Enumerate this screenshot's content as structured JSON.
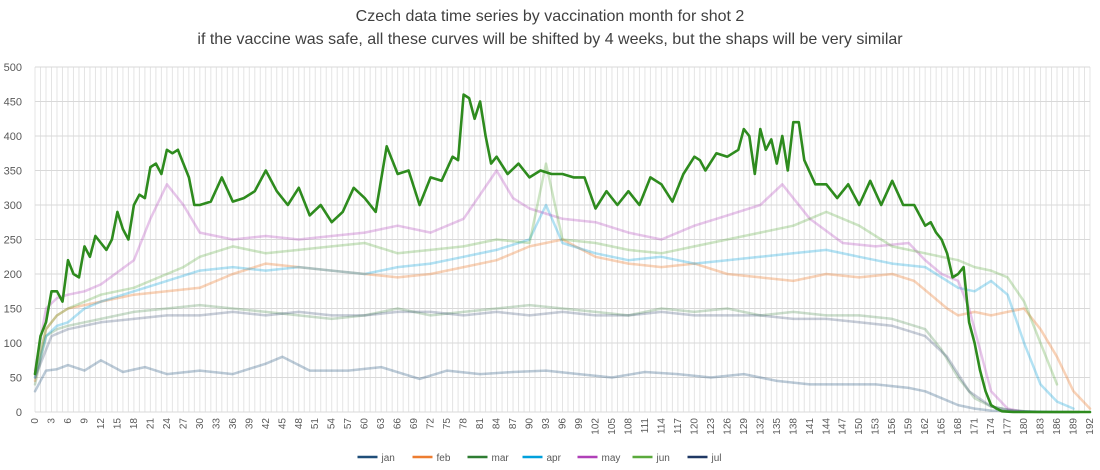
{
  "chart_data": {
    "type": "line",
    "title": "Czech data time series by vaccination month for shot 2",
    "subtitle": "if the vaccine was safe, all these curves will be shifted by 4 weeks, but the shaps will be very similar",
    "xlabel": "",
    "ylabel": "",
    "xlim": [
      0,
      192
    ],
    "ylim": [
      0,
      500
    ],
    "yticks": [
      0,
      50,
      100,
      150,
      200,
      250,
      300,
      350,
      400,
      450,
      500
    ],
    "xtick_step": 3,
    "grid": true,
    "legend_position": "bottom",
    "note": "Series are approximate readings from the figure (weekly values at shown x positions).",
    "series": [
      {
        "name": "jan",
        "color": "#1f4e79",
        "opacity": 0.3,
        "width": 2.5,
        "x": [
          0,
          2,
          4,
          6,
          9,
          12,
          16,
          20,
          24,
          30,
          36,
          42,
          45,
          50,
          57,
          63,
          70,
          75,
          81,
          87,
          93,
          99,
          105,
          111,
          117,
          123,
          129,
          135,
          141,
          147,
          153,
          159,
          162,
          165,
          168,
          171,
          174,
          180,
          186,
          190
        ],
        "y": [
          30,
          60,
          62,
          68,
          60,
          75,
          58,
          65,
          55,
          60,
          55,
          70,
          80,
          60,
          60,
          65,
          48,
          60,
          55,
          58,
          60,
          55,
          50,
          58,
          55,
          50,
          55,
          45,
          40,
          40,
          40,
          35,
          30,
          20,
          10,
          5,
          2,
          1,
          0,
          0
        ]
      },
      {
        "name": "feb",
        "color": "#ed7d31",
        "opacity": 0.35,
        "width": 2.5,
        "x": [
          0,
          2,
          4,
          6,
          9,
          12,
          18,
          24,
          30,
          36,
          42,
          48,
          54,
          60,
          66,
          72,
          78,
          84,
          90,
          96,
          102,
          108,
          114,
          120,
          126,
          132,
          138,
          144,
          150,
          156,
          160,
          163,
          166,
          168,
          171,
          174,
          177,
          180,
          183,
          186,
          189,
          192
        ],
        "y": [
          45,
          120,
          140,
          150,
          155,
          160,
          170,
          175,
          180,
          200,
          215,
          210,
          205,
          200,
          195,
          200,
          210,
          220,
          240,
          250,
          225,
          215,
          210,
          215,
          200,
          195,
          190,
          200,
          195,
          200,
          190,
          170,
          150,
          140,
          145,
          140,
          145,
          150,
          120,
          80,
          30,
          5
        ]
      },
      {
        "name": "mar",
        "color": "#2e7d32",
        "opacity": 0.25,
        "width": 2.5,
        "x": [
          0,
          2,
          4,
          6,
          9,
          12,
          18,
          24,
          30,
          36,
          42,
          48,
          54,
          60,
          66,
          72,
          78,
          84,
          90,
          96,
          102,
          108,
          114,
          120,
          126,
          132,
          138,
          144,
          150,
          156,
          162,
          165,
          168,
          171,
          174,
          177,
          180,
          183,
          186,
          189
        ],
        "y": [
          40,
          110,
          120,
          125,
          130,
          135,
          145,
          150,
          155,
          150,
          145,
          140,
          135,
          140,
          150,
          140,
          145,
          150,
          155,
          150,
          145,
          140,
          150,
          145,
          150,
          140,
          145,
          140,
          140,
          135,
          120,
          90,
          50,
          20,
          8,
          3,
          1,
          0,
          0,
          0
        ]
      },
      {
        "name": "apr",
        "color": "#00a0dc",
        "opacity": 0.3,
        "width": 2.5,
        "x": [
          0,
          2,
          4,
          6,
          9,
          12,
          18,
          24,
          30,
          36,
          42,
          48,
          54,
          60,
          66,
          72,
          78,
          84,
          90,
          93,
          96,
          102,
          108,
          114,
          120,
          126,
          132,
          138,
          144,
          150,
          156,
          162,
          165,
          168,
          171,
          174,
          177,
          180,
          183,
          186,
          189
        ],
        "y": [
          50,
          110,
          125,
          130,
          150,
          160,
          175,
          190,
          205,
          210,
          205,
          210,
          205,
          200,
          210,
          215,
          225,
          235,
          250,
          300,
          245,
          230,
          220,
          225,
          215,
          220,
          225,
          230,
          235,
          225,
          215,
          210,
          195,
          180,
          175,
          190,
          170,
          100,
          40,
          15,
          5
        ]
      },
      {
        "name": "may",
        "color": "#b040b8",
        "opacity": 0.3,
        "width": 2.5,
        "x": [
          0,
          2,
          4,
          6,
          9,
          12,
          18,
          21,
          24,
          27,
          30,
          36,
          42,
          48,
          54,
          60,
          66,
          72,
          78,
          84,
          87,
          90,
          96,
          102,
          108,
          114,
          120,
          126,
          132,
          136,
          141,
          147,
          153,
          159,
          162,
          165,
          168,
          170,
          172,
          174,
          177,
          180
        ],
        "y": [
          60,
          150,
          165,
          170,
          175,
          185,
          220,
          280,
          330,
          300,
          260,
          250,
          255,
          250,
          255,
          260,
          270,
          260,
          280,
          350,
          310,
          295,
          280,
          275,
          260,
          250,
          270,
          285,
          300,
          330,
          280,
          245,
          240,
          245,
          220,
          200,
          190,
          150,
          90,
          30,
          5,
          0
        ]
      },
      {
        "name": "jun",
        "color": "#5aaa3c",
        "opacity": 0.3,
        "width": 2.5,
        "x": [
          0,
          2,
          4,
          6,
          9,
          12,
          18,
          21,
          24,
          27,
          30,
          36,
          42,
          48,
          54,
          60,
          66,
          72,
          78,
          84,
          90,
          93,
          96,
          102,
          108,
          114,
          120,
          126,
          132,
          138,
          144,
          150,
          156,
          162,
          165,
          168,
          171,
          174,
          177,
          180,
          183,
          186
        ],
        "y": [
          55,
          120,
          140,
          150,
          160,
          170,
          180,
          190,
          200,
          210,
          225,
          240,
          230,
          235,
          240,
          245,
          230,
          235,
          240,
          250,
          245,
          360,
          250,
          245,
          235,
          230,
          240,
          250,
          260,
          270,
          290,
          270,
          240,
          230,
          225,
          220,
          210,
          205,
          195,
          160,
          100,
          40
        ]
      },
      {
        "name": "jul",
        "color": "#1f3864",
        "opacity": 0.25,
        "width": 2.5,
        "x": [
          0,
          3,
          6,
          12,
          18,
          24,
          30,
          36,
          42,
          48,
          54,
          60,
          66,
          72,
          78,
          84,
          90,
          96,
          102,
          108,
          114,
          120,
          126,
          132,
          138,
          144,
          150,
          156,
          162,
          166,
          170,
          174,
          178,
          182,
          186,
          190
        ],
        "y": [
          50,
          110,
          120,
          130,
          135,
          140,
          140,
          145,
          140,
          145,
          140,
          140,
          145,
          145,
          140,
          145,
          140,
          145,
          140,
          140,
          145,
          140,
          140,
          140,
          135,
          135,
          130,
          125,
          110,
          80,
          30,
          8,
          2,
          0,
          0,
          0
        ]
      },
      {
        "name": "mar-emphasis",
        "legend": false,
        "color": "#2e8b1e",
        "opacity": 1,
        "width": 2.6,
        "x": [
          0,
          1,
          2,
          3,
          4,
          5,
          6,
          7,
          8,
          9,
          10,
          11,
          12,
          13,
          14,
          15,
          16,
          17,
          18,
          19,
          20,
          21,
          22,
          23,
          24,
          25,
          26,
          27,
          28,
          29,
          30,
          32,
          34,
          36,
          38,
          40,
          42,
          44,
          46,
          48,
          50,
          52,
          54,
          56,
          58,
          60,
          62,
          64,
          66,
          68,
          70,
          72,
          74,
          76,
          77,
          78,
          79,
          80,
          81,
          82,
          83,
          84,
          86,
          88,
          90,
          92,
          94,
          96,
          98,
          100,
          102,
          104,
          106,
          108,
          110,
          112,
          114,
          116,
          118,
          120,
          121,
          122,
          124,
          126,
          128,
          129,
          130,
          131,
          132,
          133,
          134,
          135,
          136,
          137,
          138,
          139,
          140,
          142,
          144,
          146,
          148,
          150,
          152,
          154,
          156,
          158,
          160,
          162,
          163,
          164,
          165,
          166,
          167,
          168,
          169,
          170,
          171,
          172,
          173,
          174,
          175,
          176,
          178,
          180,
          183,
          186,
          189,
          192
        ],
        "y": [
          55,
          110,
          130,
          175,
          175,
          160,
          220,
          200,
          195,
          240,
          225,
          255,
          245,
          235,
          250,
          290,
          265,
          250,
          300,
          315,
          310,
          355,
          360,
          345,
          380,
          375,
          380,
          360,
          340,
          300,
          300,
          305,
          340,
          305,
          310,
          320,
          350,
          320,
          300,
          325,
          285,
          300,
          275,
          290,
          325,
          310,
          290,
          385,
          345,
          350,
          300,
          340,
          335,
          370,
          365,
          460,
          455,
          425,
          450,
          400,
          360,
          370,
          345,
          360,
          340,
          350,
          345,
          345,
          340,
          340,
          295,
          320,
          300,
          320,
          300,
          340,
          330,
          305,
          345,
          370,
          365,
          350,
          375,
          370,
          380,
          410,
          400,
          345,
          410,
          380,
          395,
          360,
          400,
          350,
          420,
          420,
          365,
          330,
          330,
          310,
          330,
          300,
          335,
          300,
          335,
          300,
          300,
          270,
          275,
          260,
          250,
          230,
          195,
          200,
          210,
          130,
          100,
          60,
          30,
          10,
          5,
          1,
          0,
          0,
          0,
          0,
          0,
          0
        ]
      }
    ],
    "legend": [
      "jan",
      "feb",
      "mar",
      "apr",
      "may",
      "jun",
      "jul"
    ]
  }
}
